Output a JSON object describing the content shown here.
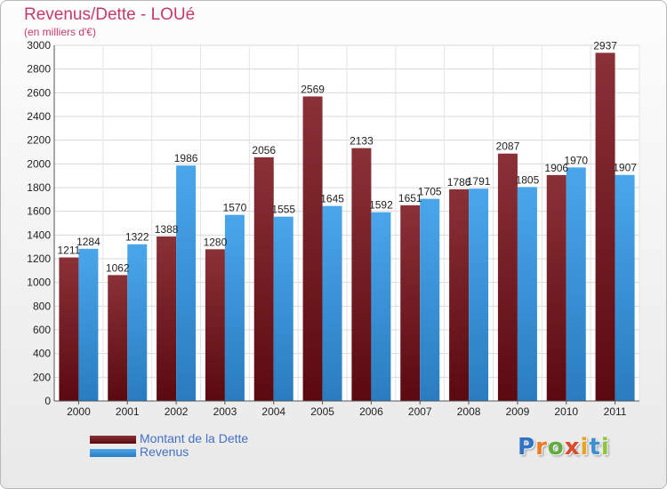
{
  "title": "Revenus/Dette - LOUé",
  "subtitle": "(en milliers d'€)",
  "logo": {
    "letters": [
      "P",
      "r",
      "o",
      "x",
      "i",
      "t",
      "i"
    ],
    "colors": [
      "#2e73c4",
      "#e87b23",
      "#5fae3c",
      "#d94b2b",
      "#e8a323",
      "#3b8fd3",
      "#8cc63f"
    ]
  },
  "chart_data": {
    "type": "bar",
    "categories": [
      "2000",
      "2001",
      "2002",
      "2003",
      "2004",
      "2005",
      "2006",
      "2007",
      "2008",
      "2009",
      "2010",
      "2011"
    ],
    "series": [
      {
        "name": "Montant de la Dette",
        "color": "#7a1f26",
        "values": [
          1211,
          1062,
          1388,
          1280,
          2056,
          2569,
          2133,
          1651,
          1786,
          2087,
          1906,
          2937
        ],
        "labels": [
          "1211",
          "1062",
          "1388",
          "1280",
          "2056",
          "2569",
          "2133",
          "1651",
          "1786",
          "2087",
          "1906",
          "2937"
        ]
      },
      {
        "name": "Revenus",
        "color": "#3f9be0",
        "values": [
          1284,
          1322,
          1986,
          1570,
          1555,
          1645,
          1592,
          1705,
          1791,
          1805,
          1970,
          1907
        ],
        "labels": [
          "1284",
          "1322",
          "1986",
          "1570",
          "1555",
          "1645",
          "1592",
          "1705",
          "1791",
          "1805",
          "1970",
          "1907"
        ]
      }
    ],
    "ylim": [
      0,
      3000
    ],
    "yticks": [
      0,
      200,
      400,
      600,
      800,
      1000,
      1200,
      1400,
      1600,
      1800,
      2000,
      2200,
      2400,
      2600,
      2800,
      3000
    ],
    "grid": true,
    "legend_position": "bottom-left"
  }
}
